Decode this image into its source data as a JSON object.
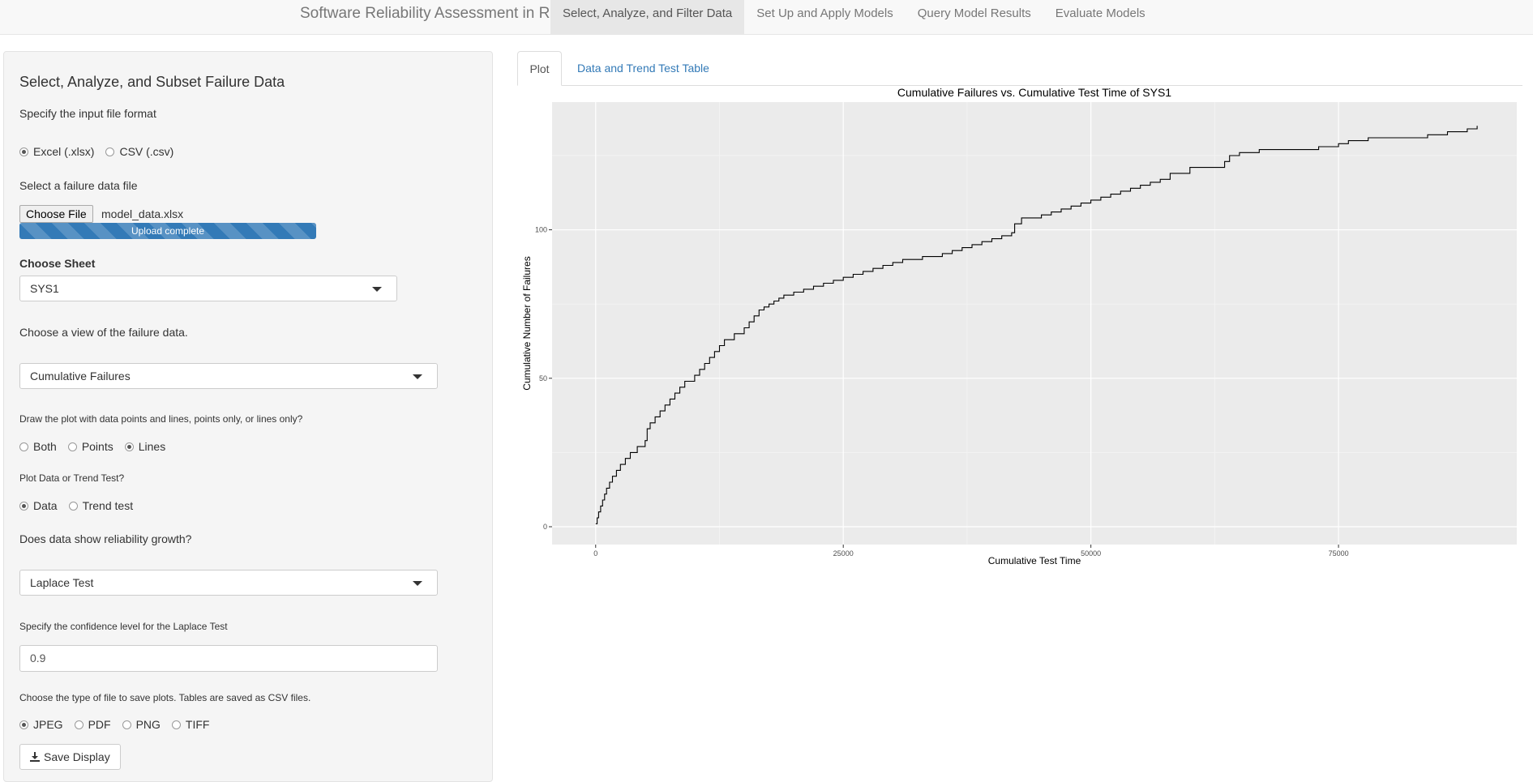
{
  "app": {
    "title": "Software Reliability Assessment in R",
    "nav_tabs": [
      {
        "label": "Select, Analyze, and Filter Data",
        "active": true
      },
      {
        "label": "Set Up and Apply Models"
      },
      {
        "label": "Query Model Results"
      },
      {
        "label": "Evaluate Models"
      }
    ]
  },
  "sidebar": {
    "heading": "Select, Analyze, and Subset Failure Data",
    "input_format": {
      "label": "Specify the input file format",
      "options": [
        "Excel (.xlsx)",
        "CSV (.csv)"
      ],
      "selected": "Excel (.xlsx)"
    },
    "file": {
      "label": "Select a failure data file",
      "button_label": "Choose File",
      "file_name": "model_data.xlsx",
      "progress_text": "Upload complete",
      "progress_fraction": 1.0
    },
    "sheet": {
      "label": "Choose Sheet",
      "value": "SYS1"
    },
    "view": {
      "label": "Choose a view of the failure data.",
      "value": "Cumulative Failures"
    },
    "plot_style": {
      "label": "Draw the plot with data points and lines, points only, or lines only?",
      "options": [
        "Both",
        "Points",
        "Lines"
      ],
      "selected": "Lines"
    },
    "plot_type": {
      "label": "Plot Data or Trend Test?",
      "options": [
        "Data",
        "Trend test"
      ],
      "selected": "Data"
    },
    "growth": {
      "label": "Does data show reliability growth?",
      "value": "Laplace Test"
    },
    "confidence": {
      "label": "Specify the confidence level for the Laplace Test",
      "value": "0.9"
    },
    "save_type": {
      "label": "Choose the type of file to save plots. Tables are saved as CSV files.",
      "options": [
        "JPEG",
        "PDF",
        "PNG",
        "TIFF"
      ],
      "selected": "JPEG"
    },
    "save_button": "Save Display"
  },
  "main": {
    "tabs": [
      {
        "label": "Plot",
        "active": true
      },
      {
        "label": "Data and Trend Test Table"
      }
    ]
  },
  "chart_data": {
    "type": "line",
    "step": true,
    "title": "Cumulative Failures vs. Cumulative Test Time of SYS1",
    "xlabel": "Cumulative Test Time",
    "ylabel": "Cumulative Number of Failures",
    "xlim": [
      -4400,
      93000
    ],
    "ylim": [
      -6,
      143
    ],
    "xticks": [
      0,
      25000,
      50000,
      75000
    ],
    "yticks": [
      0,
      50,
      100
    ],
    "grid": true,
    "x": [
      0,
      150,
      300,
      500,
      700,
      900,
      1100,
      1400,
      1700,
      2100,
      2500,
      3000,
      3500,
      4200,
      5000,
      5200,
      5500,
      6000,
      6500,
      7000,
      7500,
      8000,
      8500,
      9000,
      10000,
      10500,
      11000,
      11500,
      12000,
      12500,
      13000,
      14000,
      15000,
      15500,
      16000,
      16500,
      17000,
      17500,
      18000,
      18500,
      19000,
      20000,
      21000,
      22000,
      23000,
      24000,
      25000,
      26000,
      27000,
      28000,
      29000,
      30000,
      31000,
      32000,
      33000,
      34000,
      35000,
      36000,
      37000,
      38000,
      39000,
      40000,
      41000,
      42000,
      42300,
      43000,
      44000,
      45000,
      46000,
      47000,
      48000,
      49000,
      50000,
      51000,
      52000,
      53000,
      54000,
      55000,
      56000,
      57000,
      58000,
      60000,
      62000,
      63000,
      63500,
      64000,
      65000,
      67000,
      69000,
      71000,
      73000,
      75000,
      76000,
      78000,
      80000,
      82000,
      84000,
      86000,
      88000,
      89000
    ],
    "y": [
      1,
      3,
      5,
      7,
      9,
      11,
      13,
      15,
      17,
      19,
      21,
      23,
      25,
      27,
      29,
      33,
      35,
      37,
      39,
      41,
      43,
      45,
      47,
      49,
      51,
      53,
      55,
      57,
      59,
      61,
      63,
      65,
      67,
      69,
      71,
      73,
      74,
      75,
      76,
      77,
      78,
      79,
      80,
      81,
      82,
      83,
      84,
      85,
      86,
      87,
      88,
      89,
      90,
      90,
      91,
      91,
      92,
      93,
      94,
      95,
      96,
      97,
      98,
      99,
      102,
      104,
      104,
      105,
      106,
      107,
      108,
      109,
      110,
      111,
      112,
      113,
      114,
      115,
      116,
      117,
      119,
      121,
      121,
      121,
      123,
      125,
      126,
      127,
      127,
      127,
      128,
      129,
      130,
      131,
      131,
      131,
      132,
      133,
      134,
      135
    ]
  }
}
